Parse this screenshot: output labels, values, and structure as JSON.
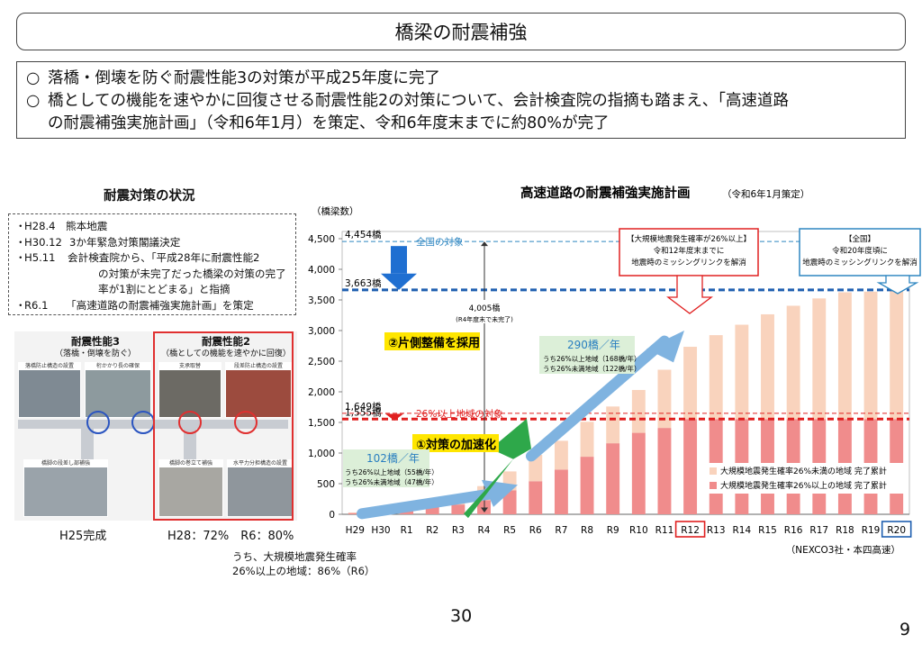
{
  "page_title": "橋梁の耐震補強",
  "summary": [
    "落橋・倒壊を防ぐ耐震性能3の対策が平成25年度に完了",
    "橋としての機能を速やかに回復させる耐震性能2の対策について、会計検査院の指摘も踏まえ、「高速道路",
    "の耐震補強実施計画」（令和6年1月）を策定、令和6年度末までに約80%が完了"
  ],
  "summary_marker": "○",
  "left_heading": "耐震対策の状況",
  "history": [
    {
      "date": "H28.4",
      "text": "熊本地震"
    },
    {
      "date": "H30.12",
      "text": "3か年緊急対策閣議決定"
    },
    {
      "date": "H5.11",
      "text": "会計検査院から、「平成28年に耐震性能2"
    }
  ],
  "history_cont": [
    "の対策が未完了だった橋梁の対策の完了",
    "率が1割にとどまる」と指摘"
  ],
  "history_last": {
    "date": "R6.1",
    "text": "「高速道路の耐震補強実施計画」を策定"
  },
  "perf3_title": "耐震性能3",
  "perf3_sub": "（落橋・倒壊を防ぐ）",
  "perf2_title": "耐震性能2",
  "perf2_sub": "（橋としての機能を速やかに回復）",
  "photo_captions": [
    "落橋防止構造の設置",
    "桁かかり長の確保",
    "支承取替",
    "段差防止構造の設置",
    "橋脚の段差し部補強",
    "橋脚の巻立て補強",
    "水平力分担構造の設置"
  ],
  "h25_label": "H25完成",
  "h28_label": "H28：72%　R6：80%",
  "note": [
    "うち、大規模地震発生確率",
    "26%以上の地域：86%（R6）"
  ],
  "page_number": "30",
  "slide_number": "9",
  "chart_data": {
    "type": "bar",
    "title": "高速道路の耐震補強実施計画",
    "subtitle": "（令和6年1月策定）",
    "ylabel": "（橋梁数）",
    "ylim": [
      0,
      4500
    ],
    "yticks": [
      "0",
      "500",
      "1,000",
      "1,500",
      "2,000",
      "2,500",
      "3,000",
      "3,500",
      "4,000",
      "4,500"
    ],
    "categories": [
      "H29",
      "H30",
      "R1",
      "R2",
      "R3",
      "R4",
      "R5",
      "R6",
      "R7",
      "R8",
      "R9",
      "R10",
      "R11",
      "R12",
      "R13",
      "R14",
      "R15",
      "R16",
      "R17",
      "R18",
      "R19",
      "R20"
    ],
    "highlight_categories": [
      "R12",
      "R20"
    ],
    "series": [
      {
        "name": "大規模地震発生確率26%以上の地域 完了累計",
        "color": "#f08c8c",
        "values": [
          20,
          40,
          80,
          120,
          160,
          230,
          390,
          540,
          730,
          940,
          1160,
          1330,
          1410,
          1555,
          1555,
          1555,
          1555,
          1555,
          1555,
          1555,
          1555,
          1555
        ]
      },
      {
        "name": "大規模地震発生確率26%未満の地域 完了累計",
        "color": "#f9d3bd",
        "values": [
          10,
          40,
          80,
          100,
          150,
          230,
          310,
          430,
          470,
          570,
          600,
          700,
          950,
          1180,
          1370,
          1540,
          1710,
          1850,
          1970,
          2070,
          2080,
          2108
        ]
      }
    ],
    "ref_lines": [
      {
        "label": "4,454橋",
        "value": 4454,
        "text": "全国の対象",
        "color": "#2e86c1",
        "style": "dashed-thin"
      },
      {
        "label": "3,663橋",
        "value": 3663,
        "text": "",
        "color": "#1f5fb0",
        "style": "dashed-thick"
      },
      {
        "label": "1,649橋",
        "value": 1649,
        "text": "26%以上地域の対象",
        "color": "#e02020",
        "style": "dashed-thin"
      },
      {
        "label": "1,555橋",
        "value": 1555,
        "text": "",
        "color": "#e02020",
        "style": "dashed-thick"
      }
    ],
    "annotations": {
      "mid_label": "4,005橋",
      "mid_sub": "(R4年度末で未完了)",
      "badge2": "②片側整備を採用",
      "badge1": "①対策の加速化",
      "rate1": "102橋／年",
      "rate1_lines": [
        "うち26%以上地域（55橋/年）",
        "うち26%未満地域（47橋/年）"
      ],
      "rate2": "290橋／年",
      "rate2_lines": [
        "うち26%以上地域（168橋/年）",
        "うち26%未満地域（122橋/年）"
      ],
      "box_red": [
        "【大規模地震発生確率が26%以上】",
        "令和12年度末までに",
        "地震時のミッシングリンクを解消"
      ],
      "box_blue": [
        "【全国】",
        "令和20年度頃に",
        "地震時のミッシングリンクを解消"
      ]
    },
    "source": "（NEXCO3社・本四高速）"
  }
}
